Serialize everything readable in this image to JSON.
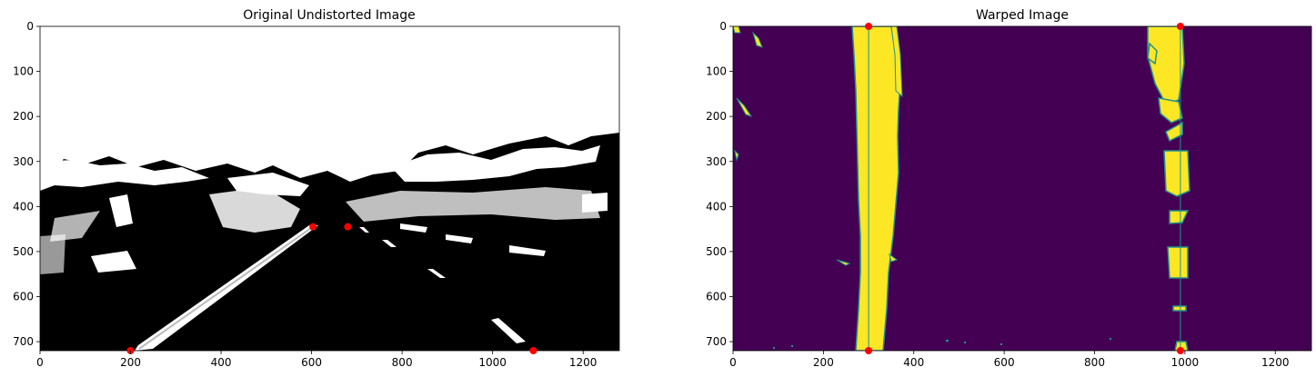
{
  "chart_data": [
    {
      "type": "image",
      "title": "Original Undistorted Image",
      "xlim": [
        0,
        1280
      ],
      "ylim": [
        720,
        0
      ],
      "x_ticks": [
        0,
        200,
        400,
        600,
        800,
        1000,
        1200
      ],
      "y_ticks": [
        0,
        100,
        200,
        300,
        400,
        500,
        600,
        700
      ],
      "x_tick_labels": [
        "0",
        "200",
        "400",
        "600",
        "800",
        "1000",
        "1200"
      ],
      "y_tick_labels": [
        "0",
        "100",
        "200",
        "300",
        "400",
        "500",
        "600",
        "700"
      ],
      "colormap": "binary (black/white)",
      "markers": [
        {
          "x": 200,
          "y": 720
        },
        {
          "x": 603,
          "y": 445
        },
        {
          "x": 680,
          "y": 445
        },
        {
          "x": 1090,
          "y": 720
        }
      ],
      "marker_color": "#ff0000"
    },
    {
      "type": "image",
      "title": "Warped Image",
      "xlim": [
        0,
        1280
      ],
      "ylim": [
        720,
        0
      ],
      "x_ticks": [
        0,
        200,
        400,
        600,
        800,
        1000,
        1200
      ],
      "y_ticks": [
        0,
        100,
        200,
        300,
        400,
        500,
        600,
        700
      ],
      "x_tick_labels": [
        "0",
        "200",
        "400",
        "600",
        "800",
        "1000",
        "1200"
      ],
      "y_tick_labels": [
        "0",
        "100",
        "200",
        "300",
        "400",
        "500",
        "600",
        "700"
      ],
      "colormap": "viridis",
      "background_color": "#440154",
      "lane_color": "#fde725",
      "edge_color": "#21918c",
      "markers": [
        {
          "x": 300,
          "y": 0
        },
        {
          "x": 990,
          "y": 0
        },
        {
          "x": 300,
          "y": 720
        },
        {
          "x": 990,
          "y": 720
        }
      ],
      "marker_color": "#ff0000",
      "guide_lines": [
        {
          "x": 300
        },
        {
          "x": 990
        }
      ]
    }
  ]
}
